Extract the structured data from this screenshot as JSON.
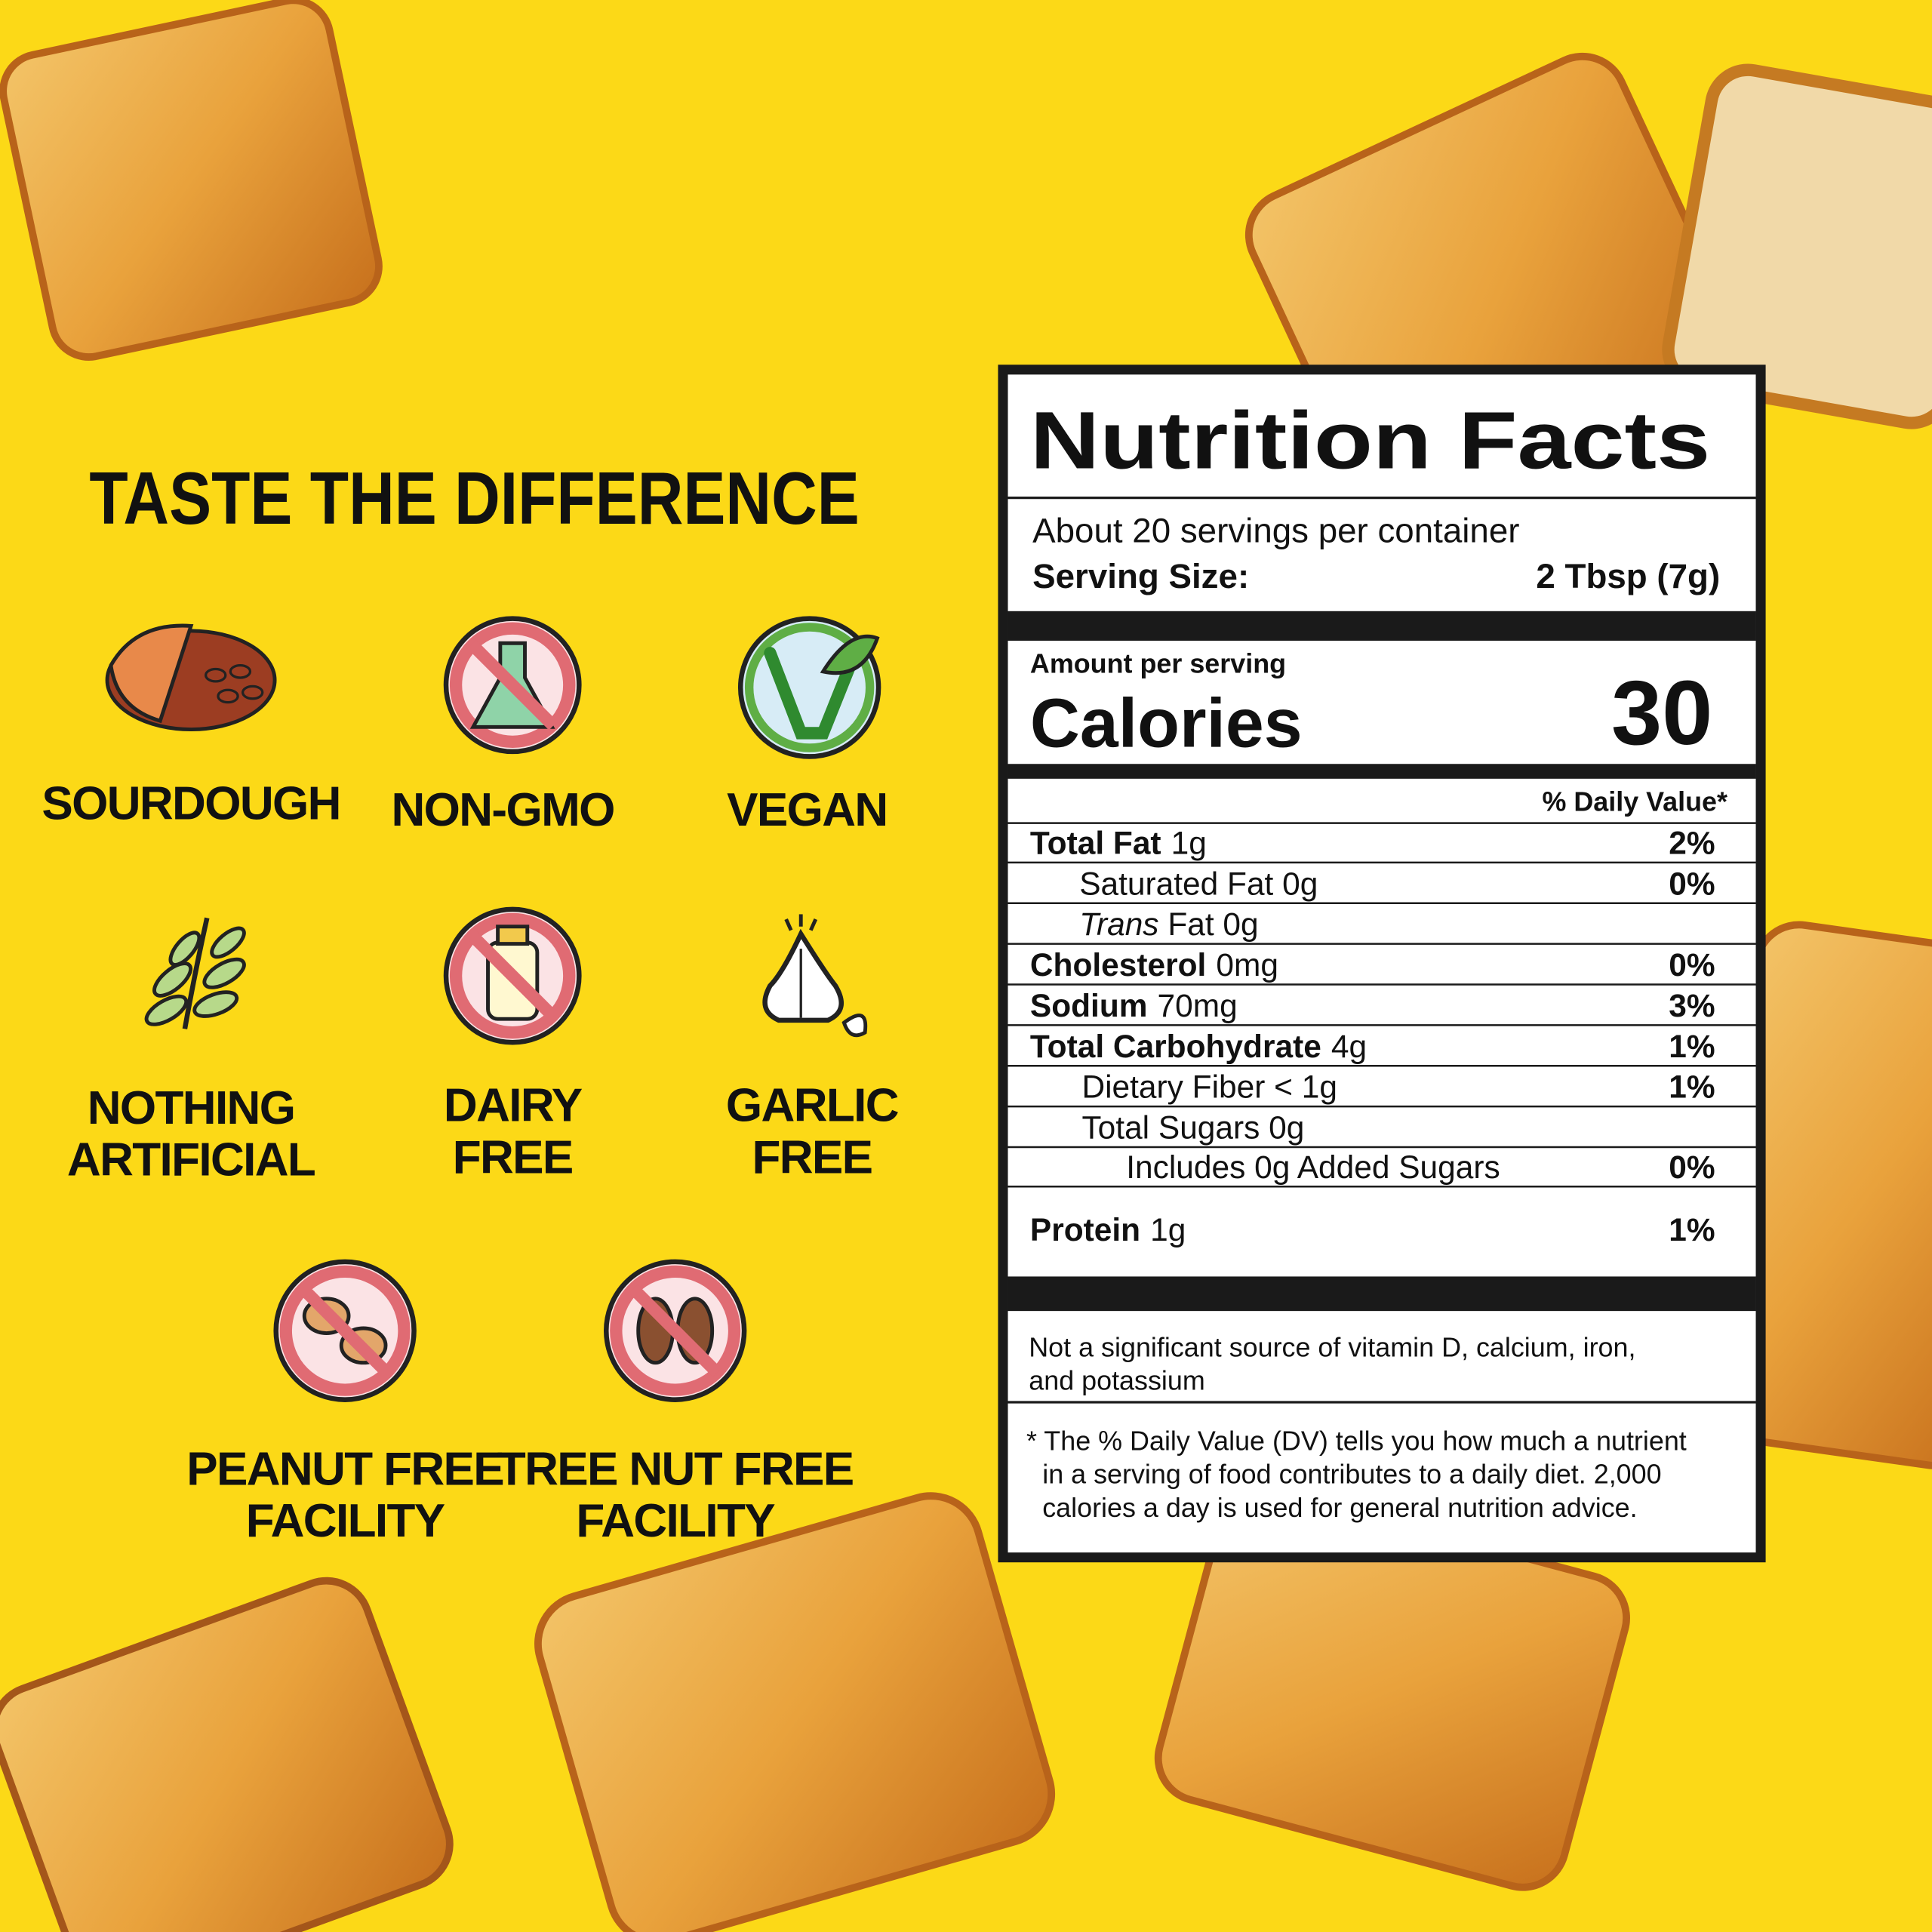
{
  "heading": "TASTE THE DIFFERENCE",
  "features": [
    {
      "lines": [
        "SOURDOUGH"
      ]
    },
    {
      "lines": [
        "NON-GMO"
      ]
    },
    {
      "lines": [
        "VEGAN"
      ]
    },
    {
      "lines": [
        "NOTHING",
        "ARTIFICIAL"
      ]
    },
    {
      "lines": [
        "DAIRY",
        "FREE"
      ]
    },
    {
      "lines": [
        "GARLIC",
        "FREE"
      ]
    },
    {
      "lines": [
        "PEANUT FREE",
        "FACILITY"
      ]
    },
    {
      "lines": [
        "TREE NUT FREE",
        "FACILITY"
      ]
    }
  ],
  "nutrition": {
    "title": "Nutrition Facts",
    "servings": "About 20 servings per container",
    "serving_size_label": "Serving Size:",
    "serving_size_value": "2 Tbsp (7g)",
    "amount_per_serving": "Amount per serving",
    "calories_label": "Calories",
    "calories_value": "30",
    "dv_header": "% Daily Value*",
    "rows": [
      {
        "label": "Total Fat",
        "amount": "1g",
        "dv": "2%"
      },
      {
        "label": "Saturated Fat 0g",
        "dv": "0%"
      },
      {
        "label_italic": "Trans",
        "label": "Fat 0g"
      },
      {
        "label": "Cholesterol",
        "amount": "0mg",
        "dv": "0%"
      },
      {
        "label": "Sodium",
        "amount": "70mg",
        "dv": "3%"
      },
      {
        "label": "Total Carbohydrate",
        "amount": "4g",
        "dv": "1%"
      },
      {
        "label": "Dietary Fiber < 1g",
        "dv": "1%"
      },
      {
        "label": "Total Sugars 0g"
      },
      {
        "label": "Includes 0g Added Sugars",
        "dv": "0%"
      },
      {
        "label": "Protein",
        "amount": "1g",
        "dv": "1%"
      }
    ],
    "note_lines": [
      "Not a significant source of vitamin D, calcium, iron,",
      "and potassium"
    ],
    "footnote_lines": [
      "* The % Daily Value (DV) tells you how much a nutrient",
      "in a serving of food contributes to a daily diet. 2,000",
      "calories a day is used for general nutrition advice."
    ]
  }
}
